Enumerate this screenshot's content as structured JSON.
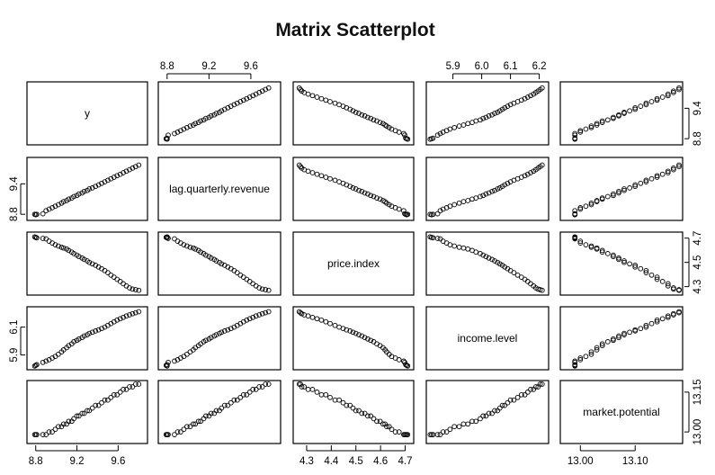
{
  "chart_data": {
    "type": "scatter",
    "title": "Matrix Scatterplot",
    "variables": [
      {
        "name": "y",
        "range": [
          8.75,
          9.85
        ],
        "ticks": [
          8.8,
          9.4
        ],
        "tick_labels": [
          "8.8",
          "9.4"
        ]
      },
      {
        "name": "lag.quarterly.revenue",
        "range": [
          8.75,
          9.85
        ],
        "ticks": [
          8.8,
          9.2,
          9.6
        ],
        "tick_labels": [
          "8.8",
          "9.2",
          "9.6"
        ]
      },
      {
        "name": "price.index",
        "range": [
          4.26,
          4.72
        ],
        "ticks": [
          4.3,
          4.4,
          4.5,
          4.6,
          4.7
        ],
        "tick_labels": [
          "4.3",
          "4.4",
          "4.5",
          "4.6",
          "4.7"
        ]
      },
      {
        "name": "income.level",
        "range": [
          5.82,
          6.22
        ],
        "ticks": [
          5.9,
          6.0,
          6.1,
          6.2
        ],
        "tick_labels": [
          "5.9",
          "6.0",
          "6.1",
          "6.2"
        ]
      },
      {
        "name": "market.potential",
        "range": [
          12.97,
          13.18
        ],
        "ticks": [
          13.0,
          13.1
        ],
        "tick_labels": [
          "13.00",
          "13.10"
        ]
      }
    ],
    "right_axis_ticks": [
      {
        "row": 0,
        "ticks": [
          8.8,
          9.4
        ],
        "tick_labels": [
          "8.8",
          "9.4"
        ]
      },
      {
        "row": 2,
        "ticks": [
          4.3,
          4.5,
          4.7
        ],
        "tick_labels": [
          "4.3",
          "4.5",
          "4.7"
        ]
      },
      {
        "row": 4,
        "ticks": [
          13.0,
          13.15
        ],
        "tick_labels": [
          "13.00",
          "13.15"
        ]
      }
    ],
    "left_axis_ticks": [
      {
        "row": 1,
        "ticks": [
          8.8,
          9.4
        ],
        "tick_labels": [
          "8.8",
          "9.4"
        ]
      },
      {
        "row": 3,
        "ticks": [
          5.9,
          6.1
        ],
        "tick_labels": [
          "5.9",
          "6.1"
        ]
      }
    ],
    "top_axis_ticks": [
      {
        "col": 1,
        "ticks": [
          8.8,
          9.2,
          9.6
        ],
        "tick_labels": [
          "8.8",
          "9.2",
          "9.6"
        ]
      },
      {
        "col": 3,
        "ticks": [
          5.9,
          6.0,
          6.1,
          6.2
        ],
        "tick_labels": [
          "5.9",
          "6.0",
          "6.1",
          "6.2"
        ]
      }
    ],
    "bottom_axis_ticks": [
      {
        "col": 0,
        "ticks": [
          8.8,
          9.2,
          9.6
        ],
        "tick_labels": [
          "8.8",
          "9.2",
          "9.6"
        ]
      },
      {
        "col": 2,
        "ticks": [
          4.3,
          4.4,
          4.5,
          4.6,
          4.7
        ],
        "tick_labels": [
          "4.3",
          "4.4",
          "4.5",
          "4.6",
          "4.7"
        ]
      },
      {
        "col": 4,
        "ticks": [
          13.0,
          13.1
        ],
        "tick_labels": [
          "13.00",
          "13.10"
        ]
      }
    ],
    "observations": [
      {
        "y": 8.79,
        "lag_quarterly_revenue": 8.8,
        "price_index": 4.71,
        "income_level": 5.821,
        "market_potential": 12.99
      },
      {
        "y": 8.8,
        "lag_quarterly_revenue": 8.79,
        "price_index": 4.706,
        "income_level": 5.826,
        "market_potential": 12.99
      },
      {
        "y": 8.81,
        "lag_quarterly_revenue": 8.8,
        "price_index": 4.702,
        "income_level": 5.831,
        "market_potential": 12.99
      },
      {
        "y": 8.87,
        "lag_quarterly_revenue": 8.81,
        "price_index": 4.698,
        "income_level": 5.847,
        "market_potential": 12.99
      },
      {
        "y": 8.9,
        "lag_quarterly_revenue": 8.87,
        "price_index": 4.694,
        "income_level": 5.856,
        "market_potential": 12.99
      },
      {
        "y": 8.93,
        "lag_quarterly_revenue": 8.9,
        "price_index": 4.675,
        "income_level": 5.866,
        "market_potential": 13.0
      },
      {
        "y": 8.96,
        "lag_quarterly_revenue": 8.93,
        "price_index": 4.66,
        "income_level": 5.878,
        "market_potential": 13.0
      },
      {
        "y": 8.99,
        "lag_quarterly_revenue": 8.96,
        "price_index": 4.645,
        "income_level": 5.89,
        "market_potential": 13.01
      },
      {
        "y": 9.02,
        "lag_quarterly_revenue": 8.99,
        "price_index": 4.635,
        "income_level": 5.905,
        "market_potential": 13.02
      },
      {
        "y": 9.05,
        "lag_quarterly_revenue": 9.02,
        "price_index": 4.625,
        "income_level": 5.922,
        "market_potential": 13.02
      },
      {
        "y": 9.07,
        "lag_quarterly_revenue": 9.05,
        "price_index": 4.618,
        "income_level": 5.937,
        "market_potential": 13.03
      },
      {
        "y": 9.1,
        "lag_quarterly_revenue": 9.07,
        "price_index": 4.61,
        "income_level": 5.952,
        "market_potential": 13.03
      },
      {
        "y": 9.12,
        "lag_quarterly_revenue": 9.1,
        "price_index": 4.598,
        "income_level": 5.967,
        "market_potential": 13.04
      },
      {
        "y": 9.15,
        "lag_quarterly_revenue": 9.12,
        "price_index": 4.585,
        "income_level": 5.98,
        "market_potential": 13.04
      },
      {
        "y": 9.17,
        "lag_quarterly_revenue": 9.15,
        "price_index": 4.572,
        "income_level": 5.995,
        "market_potential": 13.05
      },
      {
        "y": 9.2,
        "lag_quarterly_revenue": 9.17,
        "price_index": 4.56,
        "income_level": 6.005,
        "market_potential": 13.06
      },
      {
        "y": 9.22,
        "lag_quarterly_revenue": 9.2,
        "price_index": 4.548,
        "income_level": 6.015,
        "market_potential": 13.06
      },
      {
        "y": 9.25,
        "lag_quarterly_revenue": 9.22,
        "price_index": 4.536,
        "income_level": 6.025,
        "market_potential": 13.07
      },
      {
        "y": 9.27,
        "lag_quarterly_revenue": 9.25,
        "price_index": 4.524,
        "income_level": 6.036,
        "market_potential": 13.07
      },
      {
        "y": 9.3,
        "lag_quarterly_revenue": 9.27,
        "price_index": 4.512,
        "income_level": 6.045,
        "market_potential": 13.08
      },
      {
        "y": 9.32,
        "lag_quarterly_revenue": 9.3,
        "price_index": 4.5,
        "income_level": 6.055,
        "market_potential": 13.08
      },
      {
        "y": 9.35,
        "lag_quarterly_revenue": 9.32,
        "price_index": 4.488,
        "income_level": 6.063,
        "market_potential": 13.09
      },
      {
        "y": 9.38,
        "lag_quarterly_revenue": 9.35,
        "price_index": 4.476,
        "income_level": 6.072,
        "market_potential": 13.1
      },
      {
        "y": 9.41,
        "lag_quarterly_revenue": 9.38,
        "price_index": 4.462,
        "income_level": 6.08,
        "market_potential": 13.1
      },
      {
        "y": 9.44,
        "lag_quarterly_revenue": 9.41,
        "price_index": 4.448,
        "income_level": 6.09,
        "market_potential": 13.11
      },
      {
        "y": 9.47,
        "lag_quarterly_revenue": 9.44,
        "price_index": 4.432,
        "income_level": 6.1,
        "market_potential": 13.12
      },
      {
        "y": 9.5,
        "lag_quarterly_revenue": 9.47,
        "price_index": 4.415,
        "income_level": 6.112,
        "market_potential": 13.12
      },
      {
        "y": 9.53,
        "lag_quarterly_revenue": 9.5,
        "price_index": 4.395,
        "income_level": 6.125,
        "market_potential": 13.13
      },
      {
        "y": 9.56,
        "lag_quarterly_revenue": 9.53,
        "price_index": 4.378,
        "income_level": 6.138,
        "market_potential": 13.14
      },
      {
        "y": 9.59,
        "lag_quarterly_revenue": 9.56,
        "price_index": 4.36,
        "income_level": 6.15,
        "market_potential": 13.14
      },
      {
        "y": 9.62,
        "lag_quarterly_revenue": 9.59,
        "price_index": 4.342,
        "income_level": 6.16,
        "market_potential": 13.15
      },
      {
        "y": 9.65,
        "lag_quarterly_revenue": 9.62,
        "price_index": 4.324,
        "income_level": 6.17,
        "market_potential": 13.16
      },
      {
        "y": 9.68,
        "lag_quarterly_revenue": 9.65,
        "price_index": 4.306,
        "income_level": 6.18,
        "market_potential": 13.16
      },
      {
        "y": 9.71,
        "lag_quarterly_revenue": 9.68,
        "price_index": 4.29,
        "income_level": 6.188,
        "market_potential": 13.17
      },
      {
        "y": 9.74,
        "lag_quarterly_revenue": 9.71,
        "price_index": 4.28,
        "income_level": 6.196,
        "market_potential": 13.17
      },
      {
        "y": 9.77,
        "lag_quarterly_revenue": 9.74,
        "price_index": 4.275,
        "income_level": 6.203,
        "market_potential": 13.18
      },
      {
        "y": 9.8,
        "lag_quarterly_revenue": 9.77,
        "price_index": 4.27,
        "income_level": 6.21,
        "market_potential": 13.18
      }
    ]
  }
}
